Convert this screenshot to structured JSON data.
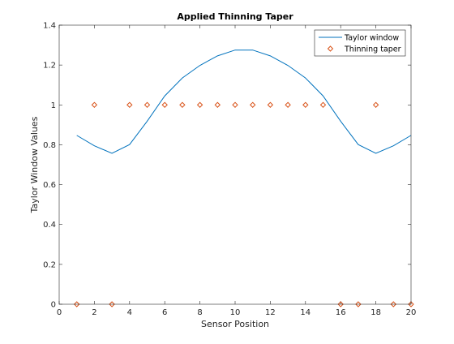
{
  "chart_data": {
    "type": "line",
    "title": "Applied Thinning Taper",
    "xlabel": "Sensor Position",
    "ylabel": "Taylor Window Values",
    "xlim": [
      0,
      20
    ],
    "ylim": [
      0,
      1.4
    ],
    "xticks": [
      0,
      2,
      4,
      6,
      8,
      10,
      12,
      14,
      16,
      18,
      20
    ],
    "yticks": [
      0,
      0.2,
      0.4,
      0.6,
      0.8,
      1,
      1.2,
      1.4
    ],
    "grid": false,
    "legend_position": "top-right",
    "series": [
      {
        "name": "Taylor window",
        "style": "line",
        "color": "#0072BD",
        "x": [
          1,
          2,
          3,
          4,
          5,
          6,
          7,
          8,
          9,
          10,
          11,
          12,
          13,
          14,
          15,
          16,
          17,
          18,
          19,
          20
        ],
        "values": [
          0.847,
          0.795,
          0.757,
          0.801,
          0.918,
          1.045,
          1.135,
          1.198,
          1.246,
          1.275,
          1.275,
          1.246,
          1.198,
          1.135,
          1.045,
          0.918,
          0.801,
          0.757,
          0.795,
          0.847
        ]
      },
      {
        "name": "Thinning taper",
        "style": "marker-diamond",
        "color": "#D95319",
        "x": [
          1,
          2,
          3,
          4,
          5,
          6,
          7,
          8,
          9,
          10,
          11,
          12,
          13,
          14,
          15,
          16,
          17,
          18,
          19,
          20
        ],
        "values": [
          0,
          1,
          0,
          1,
          1,
          1,
          1,
          1,
          1,
          1,
          1,
          1,
          1,
          1,
          1,
          0,
          0,
          1,
          0,
          0
        ]
      }
    ]
  }
}
